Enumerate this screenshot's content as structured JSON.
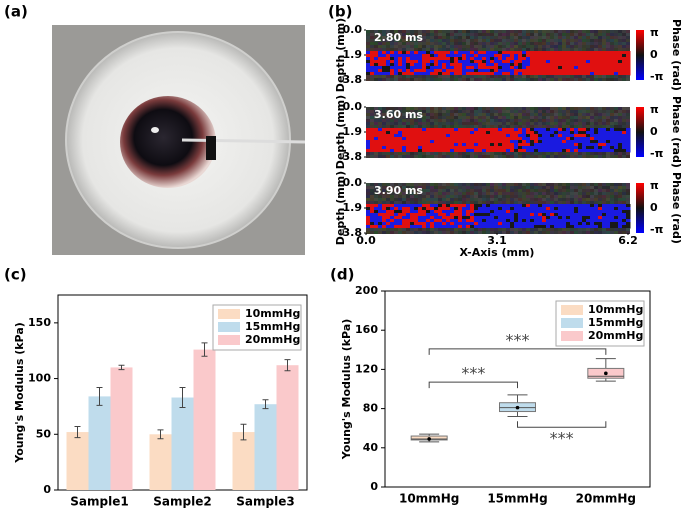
{
  "panel_labels": [
    "(a)",
    "(b)",
    "(c)",
    "(d)"
  ],
  "phase_maps": {
    "times": [
      "2.80 ms",
      "3.60 ms",
      "3.90 ms"
    ],
    "ylabel": "Depth (mm)",
    "ylim": [
      0,
      3.8
    ],
    "yticks": [
      {
        "value": 0,
        "label": "0.0"
      },
      {
        "value": 1.9,
        "label": "1.9"
      },
      {
        "value": 3.8,
        "label": "3.8"
      }
    ],
    "xlabel": "X-Axis (mm)",
    "xlim": [
      0,
      6.2
    ],
    "xticks": [
      {
        "value": 0,
        "label": "0.0"
      },
      {
        "value": 3.1,
        "label": "3.1"
      },
      {
        "value": 6.2,
        "label": "6.2"
      }
    ],
    "colorbar_label": "Phase (rad)",
    "colorbar_ticks": [
      "π",
      "0",
      "-π"
    ]
  },
  "chart_data": [
    {
      "type": "bar",
      "ylabel": "Young's Modulus (kPa)",
      "categories": [
        "Sample1",
        "Sample2",
        "Sample3"
      ],
      "series": [
        {
          "name": "10mmHg",
          "color": "#fbdcc3",
          "values": [
            52,
            50,
            52
          ],
          "errors": [
            5,
            4,
            7
          ]
        },
        {
          "name": "15mmHg",
          "color": "#bfdcec",
          "values": [
            84,
            83,
            77
          ],
          "errors": [
            8,
            9,
            4
          ]
        },
        {
          "name": "20mmHg",
          "color": "#fac9cb",
          "values": [
            110,
            126,
            112
          ],
          "errors": [
            2,
            6,
            5
          ]
        }
      ],
      "ylim": [
        0,
        175
      ],
      "yticks": [
        0,
        50,
        100,
        150
      ],
      "legend": "upper right"
    },
    {
      "type": "box",
      "ylabel": "Young's Modulus (kPa)",
      "categories": [
        "10mmHg",
        "15mmHg",
        "20mmHg"
      ],
      "colors": [
        "#fbdcc3",
        "#bfdcec",
        "#fac9cb"
      ],
      "legend_names": [
        "10mmHg",
        "15mmHg",
        "20mmHg"
      ],
      "boxes": [
        {
          "whislo": 46,
          "q1": 48,
          "med": 49,
          "q3": 52,
          "whishi": 54,
          "mean": 49
        },
        {
          "whislo": 72,
          "q1": 77,
          "med": 81,
          "q3": 86,
          "whishi": 94,
          "mean": 81
        },
        {
          "whislo": 108,
          "q1": 111,
          "med": 113,
          "q3": 121,
          "whishi": 131,
          "mean": 116
        }
      ],
      "annotations": [
        {
          "text": "***",
          "from": 0,
          "to": 2,
          "y": 141
        },
        {
          "text": "***",
          "from": 0,
          "to": 1,
          "y": 107
        },
        {
          "text": "***",
          "from": 1,
          "to": 2,
          "y": 61
        }
      ],
      "ylim": [
        0,
        200
      ],
      "yticks": [
        0,
        40,
        80,
        120,
        160,
        200
      ],
      "legend": "upper right"
    }
  ]
}
